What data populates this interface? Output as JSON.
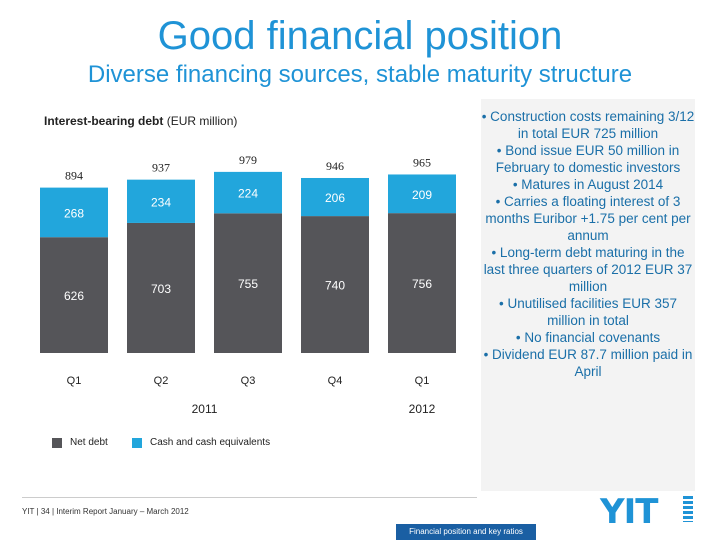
{
  "header": {
    "title": "Good financial position",
    "subtitle": "Diverse financing sources, stable maturity structure"
  },
  "chart_data": {
    "type": "bar",
    "stacked": true,
    "title_bold": "Interest-bearing debt",
    "title_rest": " (EUR million)",
    "categories": [
      "Q1",
      "Q2",
      "Q3",
      "Q4",
      "Q1"
    ],
    "groups": [
      {
        "label": "2011",
        "categories": [
          "Q1",
          "Q2",
          "Q3",
          "Q4"
        ]
      },
      {
        "label": "2012",
        "categories": [
          "Q1"
        ]
      }
    ],
    "series": [
      {
        "name": "Net debt",
        "values": [
          626,
          703,
          755,
          740,
          756
        ]
      },
      {
        "name": "Cash and cash equivalents",
        "values": [
          268,
          234,
          224,
          206,
          209
        ]
      }
    ],
    "totals": [
      894,
      937,
      979,
      946,
      965
    ],
    "ylim": [
      0,
      1000
    ],
    "grid": false,
    "legend_position": "bottom-left"
  },
  "colors": {
    "net_debt": "#555559",
    "cash": "#22a6dc",
    "title": "#1f93d6",
    "bullet_text": "#1a6fa8"
  },
  "bullets": [
    {
      "level": 1,
      "text": "Construction costs remaining 3/12 in total EUR 725 million"
    },
    {
      "level": 1,
      "text": "Bond issue EUR 50 million in February to domestic investors"
    },
    {
      "level": 2,
      "text": "Matures in August 2014"
    },
    {
      "level": 2,
      "text": "Carries a floating interest of 3 months Euribor +1.75 per cent per annum"
    },
    {
      "level": 1,
      "text": "Long-term debt maturing in the last three quarters of 2012 EUR 37 million"
    },
    {
      "level": 1,
      "text": "Unutilised facilities EUR 357 million in total"
    },
    {
      "level": 2,
      "text": "No financial covenants"
    },
    {
      "level": 1,
      "text": "Dividend EUR 87.7 million paid in April"
    }
  ],
  "footer": {
    "text": "YIT  |  34  |  Interim Report January – March 2012",
    "section": "Financial position and key ratios",
    "logo": "YIT"
  }
}
